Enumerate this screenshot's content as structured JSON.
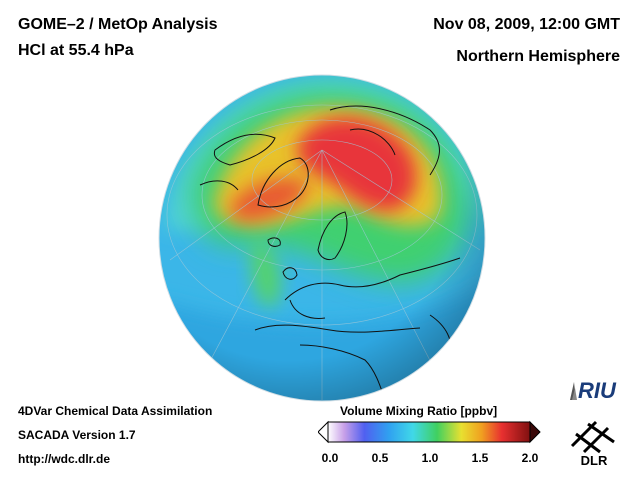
{
  "header": {
    "title_line1": "GOME–2 / MetOp Analysis",
    "title_line2": "HCl at 55.4 hPa",
    "date": "Nov 08, 2009, 12:00 GMT",
    "region": "Northern Hemisphere"
  },
  "footer": {
    "line1": "4DVar Chemical Data Assimilation",
    "line2": "SACADA Version 1.7",
    "line3": "http://wdc.dlr.de"
  },
  "colorbar": {
    "title": "Volume Mixing Ratio [ppbv]",
    "ticks": [
      "0.0",
      "0.5",
      "1.0",
      "1.5",
      "2.0"
    ],
    "min": 0.0,
    "max": 2.0
  },
  "logos": {
    "riu": "RIU",
    "dlr": "DLR"
  },
  "colors": {
    "background": "#ffffff",
    "text": "#000000"
  }
}
